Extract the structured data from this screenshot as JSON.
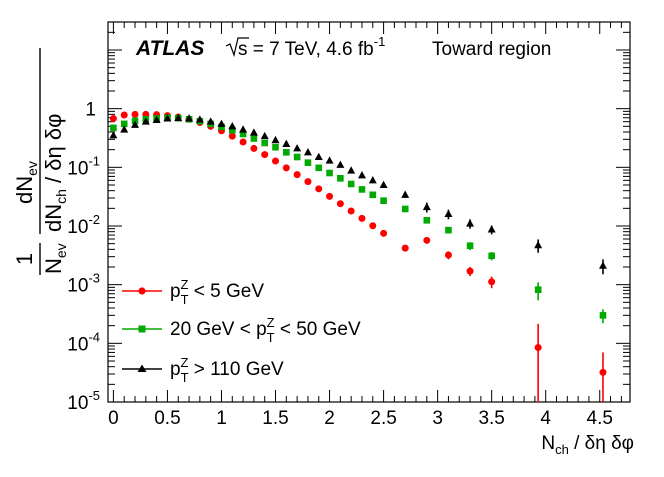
{
  "chart_data": {
    "type": "scatter",
    "log_y": true,
    "xlim": [
      -0.05,
      4.78
    ],
    "ylim": [
      1e-05,
      30
    ],
    "x_ticks": [
      0,
      0.5,
      1,
      1.5,
      2,
      2.5,
      3,
      3.5,
      4,
      4.5
    ],
    "x_tick_labels": [
      "0",
      "0.5",
      "1",
      "1.5",
      "2",
      "2.5",
      "3",
      "3.5",
      "4",
      "4.5"
    ],
    "y_ticks": [
      1e-05,
      0.0001,
      0.001,
      0.01,
      0.1,
      1
    ],
    "y_tick_labels": [
      {
        "base": "10",
        "exp": "-5"
      },
      {
        "base": "10",
        "exp": "-4"
      },
      {
        "base": "10",
        "exp": "-3"
      },
      {
        "base": "10",
        "exp": "-2"
      },
      {
        "base": "10",
        "exp": "-1"
      },
      {
        "base": "1",
        "exp": ""
      }
    ],
    "xlabel": {
      "main": "N",
      "sub": "ch",
      "rest": " / δη δφ"
    },
    "ylabel": {
      "one": "1",
      "nev": "N",
      "nev_sub": "ev",
      "dn": "dN",
      "dn_sub": "ev",
      "dnch": "dN",
      "dnch_sub": "ch",
      "rest": " / δη δφ"
    },
    "annotation": {
      "experiment": "ATLAS",
      "energy": "s = 7 TeV, 4.6 fb",
      "energy_exp": "-1",
      "region": "Toward region"
    },
    "legend": {
      "placement": "bottom-left"
    },
    "series": [
      {
        "name": "pTZ < 5 GeV",
        "legend_parts": {
          "pre": "",
          "p": "p",
          "sub": "T",
          "sup": "Z",
          "post": " < 5 GeV"
        },
        "color": "#ff0000",
        "marker": "circle",
        "x": [
          0,
          0.1,
          0.2,
          0.3,
          0.4,
          0.5,
          0.6,
          0.7,
          0.8,
          0.9,
          1.0,
          1.1,
          1.2,
          1.3,
          1.4,
          1.5,
          1.6,
          1.7,
          1.8,
          1.9,
          2.0,
          2.1,
          2.2,
          2.3,
          2.4,
          2.5,
          2.7,
          2.9,
          3.1,
          3.3,
          3.5,
          3.93,
          4.53
        ],
        "y": [
          0.68,
          0.78,
          0.8,
          0.8,
          0.79,
          0.76,
          0.72,
          0.66,
          0.58,
          0.5,
          0.42,
          0.34,
          0.27,
          0.21,
          0.165,
          0.128,
          0.098,
          0.075,
          0.057,
          0.043,
          0.032,
          0.024,
          0.018,
          0.0135,
          0.0101,
          0.0075,
          0.0042,
          0.0057,
          0.0032,
          0.0017,
          0.00112,
          8.5e-05,
          3.2e-05
        ],
        "err_lo": [
          0,
          0,
          0,
          0,
          0,
          0,
          0,
          0,
          0,
          0,
          0,
          0,
          0,
          0,
          0,
          0,
          0,
          0,
          0,
          0,
          0,
          0,
          0,
          0,
          0,
          0,
          0.0004,
          0.0007,
          0.0005,
          0.0003,
          0.00025,
          7.5e-05,
          2.5e-05
        ],
        "err_hi": [
          0,
          0,
          0,
          0,
          0,
          0,
          0,
          0,
          0,
          0,
          0,
          0,
          0,
          0,
          0,
          0,
          0,
          0,
          0,
          0,
          0,
          0,
          0,
          0,
          0,
          0,
          0.0004,
          0.0007,
          0.0005,
          0.0003,
          0.00025,
          0.00013,
          3.8e-05
        ]
      },
      {
        "name": "20 GeV < pTZ < 50 GeV",
        "legend_parts": {
          "pre": "20 GeV < ",
          "p": "p",
          "sub": "T",
          "sup": "Z",
          "post": " < 50 GeV"
        },
        "color": "#00aa00",
        "marker": "square",
        "x": [
          0,
          0.1,
          0.2,
          0.3,
          0.4,
          0.5,
          0.6,
          0.7,
          0.8,
          0.9,
          1.0,
          1.1,
          1.2,
          1.3,
          1.4,
          1.5,
          1.6,
          1.7,
          1.8,
          1.9,
          2.0,
          2.1,
          2.2,
          2.3,
          2.4,
          2.5,
          2.7,
          2.9,
          3.1,
          3.3,
          3.5,
          3.93,
          4.53
        ],
        "y": [
          0.47,
          0.55,
          0.62,
          0.66,
          0.68,
          0.7,
          0.69,
          0.66,
          0.61,
          0.55,
          0.49,
          0.43,
          0.37,
          0.31,
          0.26,
          0.22,
          0.18,
          0.15,
          0.12,
          0.098,
          0.08,
          0.065,
          0.052,
          0.042,
          0.034,
          0.027,
          0.0195,
          0.0125,
          0.0085,
          0.0046,
          0.0031,
          0.00082,
          0.0003
        ],
        "err_lo": [
          0,
          0,
          0,
          0,
          0,
          0,
          0,
          0,
          0,
          0,
          0,
          0,
          0,
          0,
          0,
          0,
          0,
          0,
          0,
          0,
          0,
          0,
          0,
          0,
          0,
          0,
          0.0015,
          0.0012,
          0.001,
          0.0007,
          0.0005,
          0.00028,
          8e-05
        ],
        "err_hi": [
          0,
          0,
          0,
          0,
          0,
          0,
          0,
          0,
          0,
          0,
          0,
          0,
          0,
          0,
          0,
          0,
          0,
          0,
          0,
          0,
          0,
          0,
          0,
          0,
          0,
          0,
          0.0015,
          0.0012,
          0.001,
          0.0007,
          0.0005,
          0.00028,
          8e-05
        ]
      },
      {
        "name": "pTZ > 110 GeV",
        "legend_parts": {
          "pre": "",
          "p": "p",
          "sub": "T",
          "sup": "Z",
          "post": " >  110 GeV"
        },
        "color": "#000000",
        "marker": "triangle",
        "x": [
          0,
          0.1,
          0.2,
          0.3,
          0.4,
          0.5,
          0.6,
          0.7,
          0.8,
          0.9,
          1.0,
          1.1,
          1.2,
          1.3,
          1.4,
          1.5,
          1.6,
          1.7,
          1.8,
          1.9,
          2.0,
          2.1,
          2.2,
          2.3,
          2.4,
          2.5,
          2.7,
          2.9,
          3.1,
          3.3,
          3.5,
          3.93,
          4.53
        ],
        "y": [
          0.35,
          0.44,
          0.53,
          0.6,
          0.64,
          0.68,
          0.69,
          0.68,
          0.65,
          0.6,
          0.55,
          0.5,
          0.44,
          0.39,
          0.34,
          0.29,
          0.25,
          0.21,
          0.18,
          0.15,
          0.13,
          0.11,
          0.088,
          0.073,
          0.06,
          0.05,
          0.034,
          0.021,
          0.016,
          0.011,
          0.0087,
          0.0047,
          0.0021
        ],
        "err_lo": [
          0,
          0,
          0,
          0,
          0,
          0,
          0,
          0,
          0,
          0,
          0,
          0,
          0,
          0,
          0,
          0,
          0,
          0,
          0,
          0,
          0,
          0,
          0,
          0,
          0,
          0,
          0.004,
          0.004,
          0.003,
          0.002,
          0.0015,
          0.0012,
          0.0006
        ],
        "err_hi": [
          0,
          0,
          0,
          0,
          0,
          0,
          0,
          0,
          0,
          0,
          0,
          0,
          0,
          0,
          0,
          0,
          0,
          0,
          0,
          0,
          0,
          0,
          0,
          0,
          0,
          0,
          0.004,
          0.004,
          0.003,
          0.002,
          0.0015,
          0.0012,
          0.0006
        ]
      }
    ]
  }
}
